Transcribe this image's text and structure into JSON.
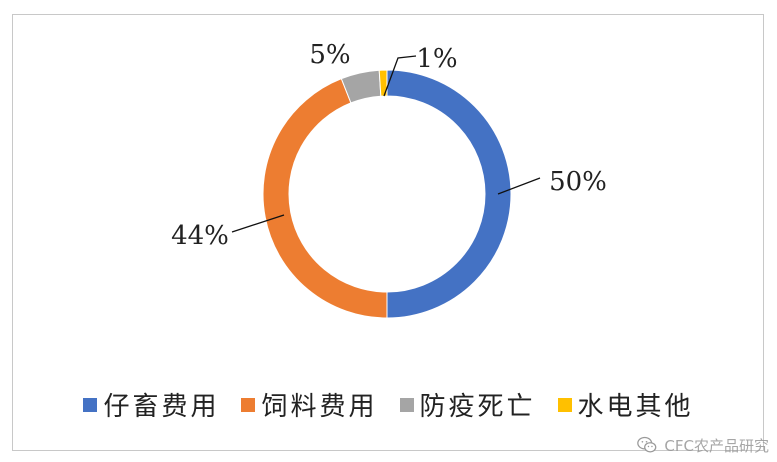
{
  "chart_data": {
    "type": "pie",
    "variant": "donut",
    "title": "",
    "categories": [
      "仔畜费用",
      "饲料费用",
      "防疫死亡",
      "水电其他"
    ],
    "values": [
      50,
      44,
      5,
      1
    ],
    "labels": [
      "50%",
      "44%",
      "5%",
      "1%"
    ],
    "colors": [
      "#4472C4",
      "#ED7D31",
      "#A5A5A5",
      "#FFC000"
    ],
    "legend_position": "bottom",
    "start_angle": "12 o'clock",
    "direction": "clockwise"
  },
  "watermark": {
    "text": "CFC农产品研究",
    "icon": "wechat-icon"
  }
}
